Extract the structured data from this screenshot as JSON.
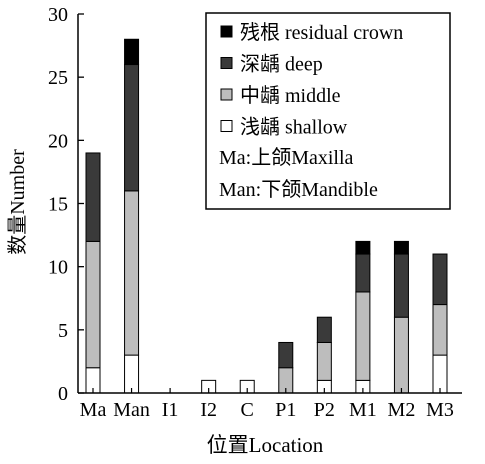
{
  "chart_data": {
    "type": "bar",
    "stacked": true,
    "categories": [
      "Ma",
      "Man",
      "I1",
      "I2",
      "C",
      "P1",
      "P2",
      "M1",
      "M2",
      "M3"
    ],
    "series": [
      {
        "name": "浅龋 shallow",
        "values": [
          2,
          3,
          0,
          1,
          1,
          0,
          1,
          1,
          0,
          3
        ]
      },
      {
        "name": "中龋 middle",
        "values": [
          10,
          13,
          0,
          0,
          0,
          2,
          3,
          7,
          6,
          4
        ]
      },
      {
        "name": "深龋 deep",
        "values": [
          7,
          10,
          0,
          0,
          0,
          2,
          2,
          3,
          5,
          4
        ]
      },
      {
        "name": "残根 residual crown",
        "values": [
          0,
          2,
          0,
          0,
          0,
          0,
          0,
          1,
          1,
          0
        ]
      }
    ],
    "series_colors": [
      "#ffffff",
      "#bdbdbd",
      "#3a3a3a",
      "#000000"
    ],
    "legend_order": [
      "残根 residual crown",
      "深龋 deep",
      "中龋 middle",
      "浅龋 shallow"
    ],
    "legend_notes": [
      "Ma:上颌Maxilla",
      "Man:下颌Mandible"
    ],
    "legend_position": "top-right",
    "xlabel": "位置Location",
    "ylabel": "数量Number",
    "ylim": [
      0,
      30
    ],
    "yticks": [
      0,
      5,
      10,
      15,
      20,
      25,
      30
    ],
    "grid": false
  }
}
